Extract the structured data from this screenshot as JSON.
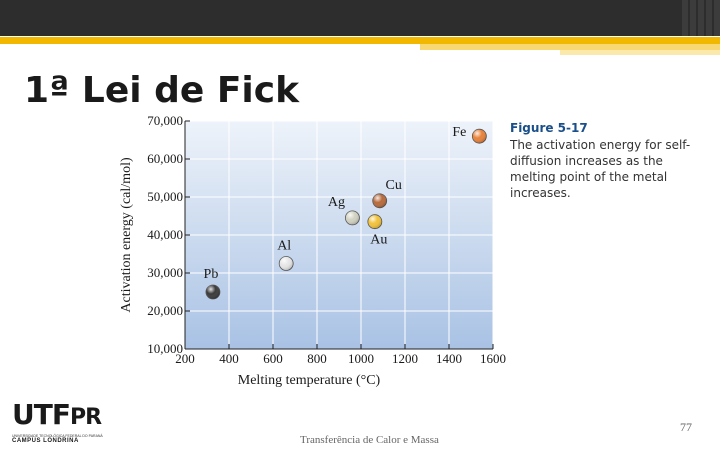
{
  "slide": {
    "title": "1ª Lei de Fick",
    "footer": "Transferência de Calor e Massa",
    "page_number": "77"
  },
  "figure": {
    "label": "Figure 5-17",
    "caption": "The activation energy for self-diffusion increases as the melting point of the metal increases."
  },
  "logo": {
    "mark": "UTF",
    "mark_suffix": "PR",
    "small_text": "UNIVERSIDADE TECNOLÓGICA FEDERAL DO PARANÁ",
    "campus": "CAMPUS LONDRINA"
  },
  "colors": {
    "accent": "#f2b800",
    "topbar": "#2d2d2d",
    "plot_top": "#eef3fa",
    "plot_bottom": "#a9c2e4"
  },
  "chart_data": {
    "type": "scatter",
    "xlabel": "Melting temperature (°C)",
    "ylabel": "Activation energy (cal/mol)",
    "xlim": [
      200,
      1600
    ],
    "ylim": [
      10000,
      70000
    ],
    "xticks": [
      200,
      400,
      600,
      800,
      1000,
      1200,
      1400,
      1600
    ],
    "xtick_labels": [
      "200",
      "400",
      "600",
      "800",
      "1000",
      "1200",
      "1400",
      "1600"
    ],
    "yticks": [
      10000,
      20000,
      30000,
      40000,
      50000,
      60000,
      70000
    ],
    "ytick_labels": [
      "10,000",
      "20,000",
      "30,000",
      "40,000",
      "50,000",
      "60,000",
      "70,000"
    ],
    "grid": true,
    "points": [
      {
        "label": "Pb",
        "x": 327,
        "y": 25000,
        "color": "#3a3a3a",
        "label_pos": "above"
      },
      {
        "label": "Al",
        "x": 660,
        "y": 32500,
        "color": "#e6e6e6",
        "label_pos": "above"
      },
      {
        "label": "Ag",
        "x": 961,
        "y": 44500,
        "color": "#d2d2c2",
        "label_pos": "above-left"
      },
      {
        "label": "Au",
        "x": 1063,
        "y": 43500,
        "color": "#f2c23a",
        "label_pos": "below"
      },
      {
        "label": "Cu",
        "x": 1085,
        "y": 49000,
        "color": "#b86a3a",
        "label_pos": "above-right"
      },
      {
        "label": "Fe",
        "x": 1538,
        "y": 66000,
        "color": "#e8823a",
        "label_pos": "left"
      }
    ]
  }
}
